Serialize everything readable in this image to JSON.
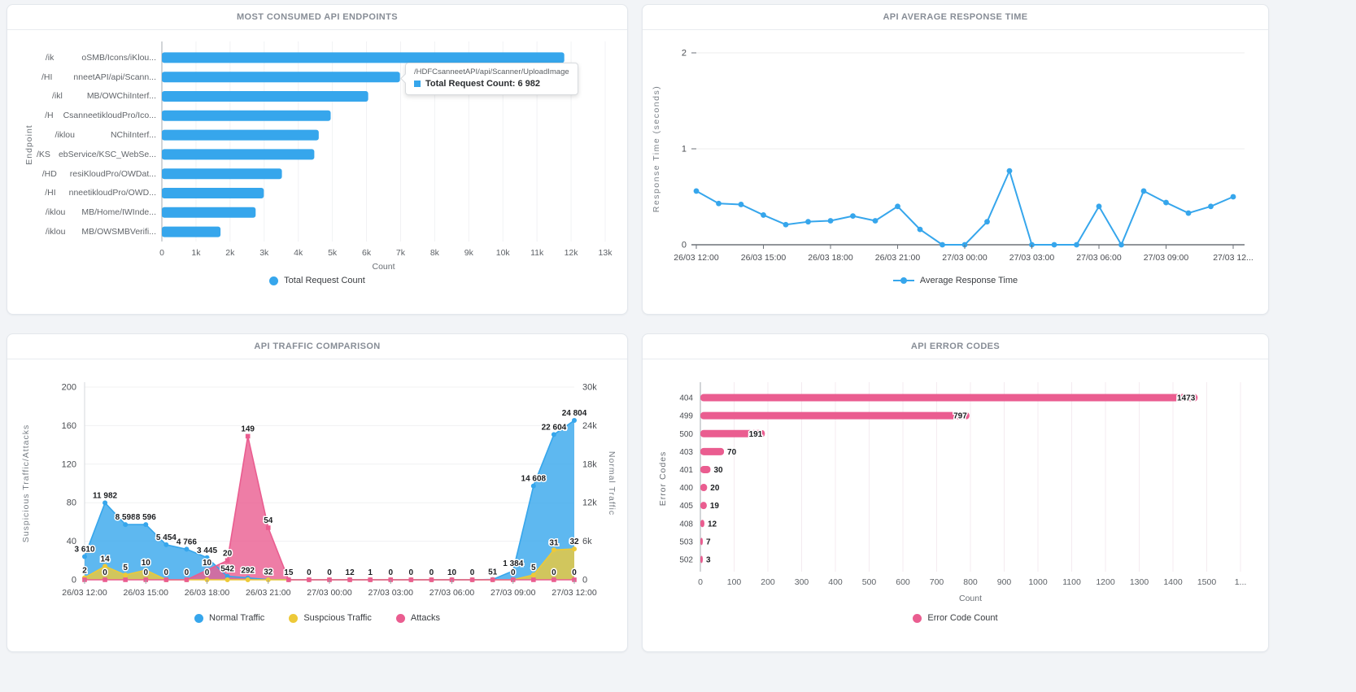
{
  "page": {
    "background": "#f2f4f7"
  },
  "chart_data": [
    {
      "type": "bar",
      "orientation": "horizontal",
      "title": "MOST CONSUMED API ENDPOINTS",
      "xlabel": "Count",
      "ylabel": "Endpoint",
      "legend_label": "Total Request Count",
      "bar_color": "#36a6ec",
      "xmax": 13000,
      "x_tick_labels": [
        "0",
        "1k",
        "2k",
        "3k",
        "4k",
        "5k",
        "6k",
        "7k",
        "8k",
        "9k",
        "10k",
        "11k",
        "12k",
        "13k"
      ],
      "categories": [
        {
          "pre": "/ik",
          "gap": 34,
          "post": "oSMB/Icons/iKlou..."
        },
        {
          "pre": "/HI",
          "gap": 26,
          "post": "nneetAPI/api/Scann..."
        },
        {
          "pre": "/ikl",
          "gap": 30,
          "post": "MB/OWChiInterf..."
        },
        {
          "pre": "/H",
          "gap": 12,
          "post": "CsanneetikloudPro/Ico..."
        },
        {
          "pre": "/iklou",
          "gap": 44,
          "post": "NChiInterf..."
        },
        {
          "pre": "/KS",
          "gap": 10,
          "post": "ebService/KSC_WebSe..."
        },
        {
          "pre": "/HD",
          "gap": 16,
          "post": "resiKloudPro/OWDat..."
        },
        {
          "pre": "/HI",
          "gap": 16,
          "post": "nneetikloudPro/OWD..."
        },
        {
          "pre": "/iklou",
          "gap": 20,
          "post": "MB/Home/IWInde..."
        },
        {
          "pre": "/iklou",
          "gap": 20,
          "post": "MB/OWSMBVerifi..."
        }
      ],
      "values": [
        11800,
        6982,
        6050,
        4950,
        4600,
        4470,
        3520,
        2990,
        2750,
        1720
      ],
      "tooltip": {
        "title": "/HDFCsanneetAPI/api/Scanner/UploadImage",
        "text": "Total Request Count: 6 982"
      }
    },
    {
      "type": "line",
      "title": "API AVERAGE RESPONSE TIME",
      "ylabel": "Response Time (seconds)",
      "legend_label": "Average Response Time",
      "color": "#36a6ec",
      "ylim": [
        0,
        2
      ],
      "y_ticks": [
        0,
        1,
        2
      ],
      "x_tick_labels": [
        "26/03 12:00",
        "26/03 15:00",
        "26/03 18:00",
        "26/03 21:00",
        "27/03 00:00",
        "27/03 03:00",
        "27/03 06:00",
        "27/03 09:00",
        "27/03 12..."
      ],
      "values": [
        0.56,
        0.43,
        0.42,
        0.31,
        0.21,
        0.24,
        0.25,
        0.3,
        0.25,
        0.4,
        0.16,
        0,
        0,
        0.24,
        0.77,
        0,
        0,
        0,
        0.4,
        0,
        0.56,
        0.44,
        0.33,
        0.4,
        0.5
      ]
    },
    {
      "type": "area",
      "title": "API TRAFFIC COMPARISON",
      "ylabel_left": "Suspicious Traffic/Attacks",
      "ylabel_right": "Normal Traffic",
      "left_max": 200,
      "right_max": 30000,
      "y_ticks_left": [
        "0",
        "40",
        "80",
        "120",
        "160",
        "200"
      ],
      "y_ticks_right": [
        "0",
        "6k",
        "12k",
        "18k",
        "24k",
        "30k"
      ],
      "x_tick_labels": [
        "26/03 12:00",
        "26/03 15:00",
        "26/03 18:00",
        "26/03 21:00",
        "27/03 00:00",
        "27/03 03:00",
        "27/03 06:00",
        "27/03 09:00",
        "27/03 12:00"
      ],
      "series": [
        {
          "name": "Normal Traffic",
          "color": "#36a6ec",
          "axis": "right",
          "marker": "circle",
          "values": [
            3610,
            11982,
            8598,
            8596,
            5454,
            4766,
            3445,
            542,
            292,
            32,
            15,
            0,
            0,
            12,
            1,
            0,
            0,
            0,
            10,
            0,
            51,
            1384,
            14608,
            22604,
            24804
          ],
          "label_indices": [
            0,
            1,
            2,
            3,
            4,
            5,
            6,
            7,
            8,
            9,
            10,
            11,
            12,
            13,
            14,
            15,
            16,
            17,
            18,
            19,
            20,
            21,
            22,
            23,
            24
          ]
        },
        {
          "name": "Suspcious Traffic",
          "color": "#edc938",
          "axis": "left",
          "marker": "circle",
          "values": [
            2,
            14,
            5,
            10,
            0,
            0,
            0,
            0,
            0,
            0,
            0,
            0,
            0,
            0,
            0,
            0,
            0,
            0,
            0,
            0,
            0,
            0,
            5,
            31,
            32
          ],
          "label_indices": [
            0,
            1,
            2,
            3,
            6,
            22,
            23,
            24
          ]
        },
        {
          "name": "Attacks",
          "color": "#ea5d90",
          "axis": "left",
          "marker": "square",
          "values": [
            0,
            0,
            0,
            0,
            0,
            0,
            10,
            20,
            149,
            54,
            0,
            0,
            0,
            0,
            0,
            0,
            0,
            0,
            0,
            0,
            0,
            0,
            0,
            0,
            0
          ],
          "label_indices": [
            1,
            3,
            4,
            5,
            6,
            7,
            8,
            9,
            21,
            23,
            24
          ]
        }
      ]
    },
    {
      "type": "bar",
      "orientation": "horizontal",
      "title": "API ERROR CODES",
      "xlabel": "Count",
      "ylabel": "Error Codes",
      "legend_label": "Error Code Count",
      "bar_color": "#ea5d90",
      "xmax": 1600,
      "x_tick_labels": [
        "0",
        "100",
        "200",
        "300",
        "400",
        "500",
        "600",
        "700",
        "800",
        "900",
        "1000",
        "1100",
        "1200",
        "1300",
        "1400",
        "1500",
        "1..."
      ],
      "categories": [
        "404",
        "499",
        "500",
        "403",
        "401",
        "400",
        "405",
        "408",
        "503",
        "502"
      ],
      "values": [
        1473,
        797,
        191,
        70,
        30,
        20,
        19,
        12,
        7,
        3
      ]
    }
  ]
}
